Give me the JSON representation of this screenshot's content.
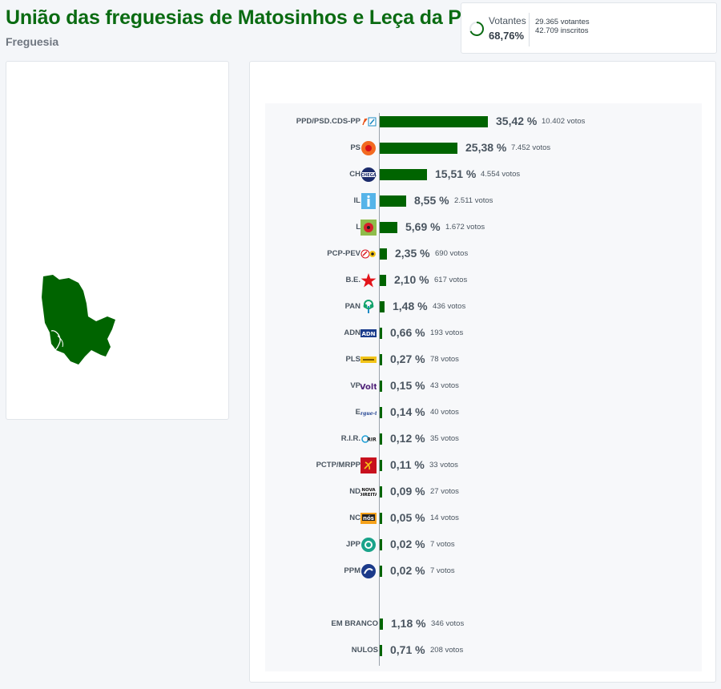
{
  "header": {
    "title": "União das freguesias de Matosinhos e Leça da Palmeira",
    "subtitle": "Freguesia"
  },
  "stats": {
    "voters_label": "Votantes",
    "turnout": "68,76%",
    "turnout_fraction": 0.6876,
    "voters": "29.365 votantes",
    "registered": "42.709 inscritos"
  },
  "colors": {
    "title": "#0a6b12",
    "bar": "#006400"
  },
  "chart_data": {
    "type": "bar",
    "orientation": "horizontal",
    "max_percent": 35.42,
    "rows": [
      {
        "party": "PPD/PSD.CDS-PP",
        "logo": "psd-cds-logo",
        "percent": 35.42,
        "pct_text": "35,42 %",
        "votes_text": "10.402 votos"
      },
      {
        "party": "PS",
        "logo": "ps-fist-rose-logo",
        "percent": 25.38,
        "pct_text": "25,38 %",
        "votes_text": "7.452 votos"
      },
      {
        "party": "CH",
        "logo": "chega-logo",
        "percent": 15.51,
        "pct_text": "15,51 %",
        "votes_text": "4.554 votos"
      },
      {
        "party": "IL",
        "logo": "il-logo",
        "percent": 8.55,
        "pct_text": "8,55 %",
        "votes_text": "2.511 votos"
      },
      {
        "party": "L",
        "logo": "livre-poppy-logo",
        "percent": 5.69,
        "pct_text": "5,69 %",
        "votes_text": "1.672 votos"
      },
      {
        "party": "PCP-PEV",
        "logo": "cdu-logo",
        "percent": 2.35,
        "pct_text": "2,35 %",
        "votes_text": "690 votos"
      },
      {
        "party": "B.E.",
        "logo": "be-star-logo",
        "percent": 2.1,
        "pct_text": "2,10 %",
        "votes_text": "617 votos"
      },
      {
        "party": "PAN",
        "logo": "pan-tree-logo",
        "percent": 1.48,
        "pct_text": "1,48 %",
        "votes_text": "436 votos"
      },
      {
        "party": "ADN",
        "logo": "adn-logo",
        "percent": 0.66,
        "pct_text": "0,66 %",
        "votes_text": "193 votos"
      },
      {
        "party": "PLS",
        "logo": "pls-logo",
        "percent": 0.27,
        "pct_text": "0,27 %",
        "votes_text": "78 votos"
      },
      {
        "party": "VP",
        "logo": "volt-logo",
        "percent": 0.15,
        "pct_text": "0,15 %",
        "votes_text": "43 votos"
      },
      {
        "party": "E",
        "logo": "ergue-te-logo",
        "percent": 0.14,
        "pct_text": "0,14 %",
        "votes_text": "40 votos"
      },
      {
        "party": "R.I.R.",
        "logo": "rir-logo",
        "percent": 0.12,
        "pct_text": "0,12 %",
        "votes_text": "35 votos"
      },
      {
        "party": "PCTP/MRPP",
        "logo": "pctp-logo",
        "percent": 0.11,
        "pct_text": "0,11 %",
        "votes_text": "33 votos"
      },
      {
        "party": "ND",
        "logo": "nova-direita-logo",
        "percent": 0.09,
        "pct_text": "0,09 %",
        "votes_text": "27 votos"
      },
      {
        "party": "NC",
        "logo": "nos-cidadaos-logo",
        "percent": 0.05,
        "pct_text": "0,05 %",
        "votes_text": "14 votos"
      },
      {
        "party": "JPP",
        "logo": "jpp-logo",
        "percent": 0.02,
        "pct_text": "0,02 %",
        "votes_text": "7 votos"
      },
      {
        "party": "PPM",
        "logo": "ppm-logo",
        "percent": 0.02,
        "pct_text": "0,02 %",
        "votes_text": "7 votos"
      },
      {
        "party": "EM BRANCO",
        "logo": "",
        "percent": 1.18,
        "pct_text": "1,18 %",
        "votes_text": "346 votos"
      },
      {
        "party": "NULOS",
        "logo": "",
        "percent": 0.71,
        "pct_text": "0,71 %",
        "votes_text": "208 votos"
      }
    ]
  }
}
